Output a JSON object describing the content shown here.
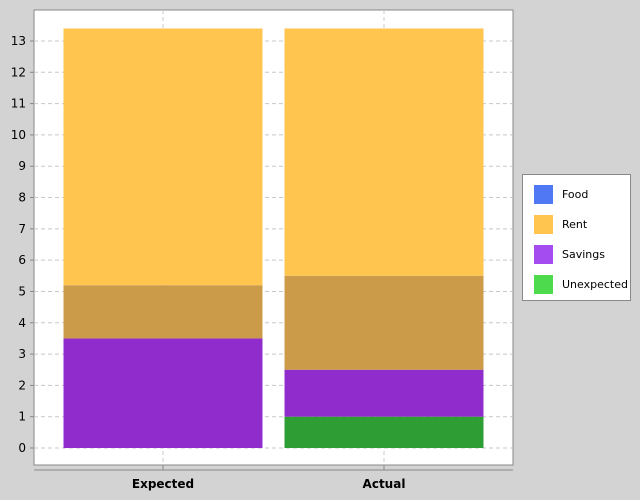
{
  "chart_data": {
    "type": "bar",
    "stacked": true,
    "categories": [
      "Expected",
      "Actual"
    ],
    "series": [
      {
        "name": "Unexpected",
        "color": "#2e9e34",
        "values": [
          0,
          1
        ]
      },
      {
        "name": "Savings",
        "color": "#902ccc",
        "values": [
          3.5,
          1.5
        ]
      },
      {
        "name": "Food",
        "color": "#cc9b4a",
        "values": [
          1.7,
          3.0
        ]
      },
      {
        "name": "Rent",
        "color": "#ffc54f",
        "values": [
          8.2,
          7.9
        ]
      }
    ],
    "overlap_note": "Food drawn semi-transparent over Rent area",
    "ylim": [
      -0.4,
      14
    ],
    "yticks": [
      0,
      1,
      2,
      3,
      4,
      5,
      6,
      7,
      8,
      9,
      10,
      11,
      12,
      13
    ],
    "grid": true,
    "legend_position": "right"
  },
  "legend": {
    "items": [
      {
        "label": "Food",
        "color": "#5078f5"
      },
      {
        "label": "Rent",
        "color": "#ffc54f"
      },
      {
        "label": "Savings",
        "color": "#a54cf0"
      },
      {
        "label": "Unexpected",
        "color": "#4ddb4d"
      }
    ]
  }
}
